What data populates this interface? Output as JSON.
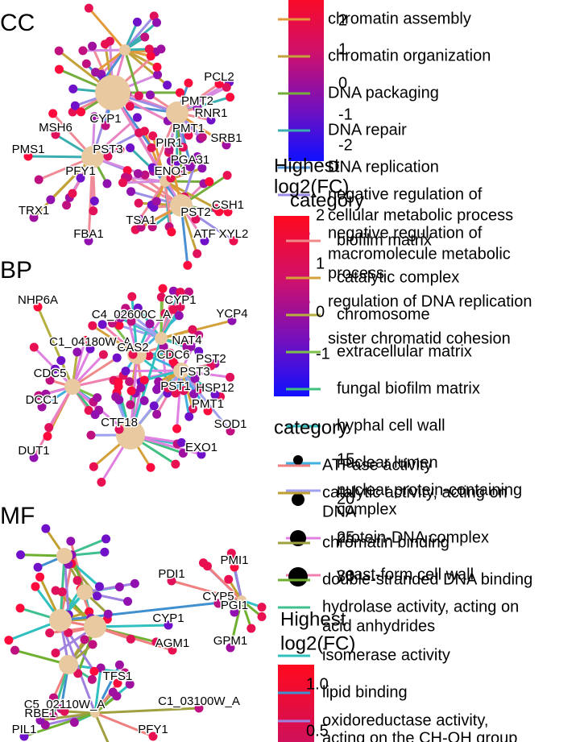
{
  "panels": [
    {
      "title": "CC",
      "genes": [
        "PCL2",
        "MSH6",
        "CYP1",
        "PMT2",
        "RNR1",
        "PMT1",
        "SRB1",
        "PMS1",
        "PST3",
        "PIR1",
        "PGA31",
        "PFY1",
        "ENO1",
        "TRX1",
        "CSH1",
        "PST2",
        "TSA1",
        "FBA1",
        "ATF",
        "XYL2"
      ]
    },
    {
      "title": "BP",
      "genes": [
        "NHP6A",
        "CYP1",
        "C4_02600C_A",
        "YCP4",
        "C1_04180W_A",
        "CAS2",
        "NAT4",
        "CDC6",
        "PST2",
        "CDC5",
        "PST3",
        "HSP12",
        "PST1",
        "DCC1",
        "PMT1",
        "CTF18",
        "SOD1",
        "DUT1",
        "EXO1"
      ]
    },
    {
      "title": "MF",
      "genes": [
        "PMI1",
        "PDI1",
        "CYP5",
        "PGI1",
        "CYP1",
        "AGM1",
        "GPM1",
        "TFS1",
        "C5_02110W_A",
        "C1_03100W_A",
        "RBE1",
        "PIL1",
        "PFY1"
      ]
    }
  ],
  "legends": [
    {
      "ticks": [
        "2",
        "1",
        "0",
        "-1",
        "-2"
      ],
      "categories": [
        {
          "lines": [
            "chromatin assembly"
          ],
          "color": "#e39a3b"
        },
        {
          "lines": [
            "chromatin organization"
          ],
          "color": "#c3a23a"
        },
        {
          "lines": [
            "DNA packaging"
          ],
          "color": "#74ad3c"
        },
        {
          "lines": [
            "DNA repair"
          ],
          "color": "#3aaeb0"
        },
        {
          "lines": [
            "DNA replication"
          ],
          "color": "#4d8fd3"
        },
        {
          "lines": [
            "negative regulation of",
            "cellular metabolic process"
          ],
          "color": "#9a8ee6"
        },
        {
          "lines": [
            "negative regulation of",
            "macromolecule metabolic",
            "process"
          ],
          "color": "#d68ae0"
        },
        {
          "lines": [
            "regulation of DNA replication"
          ],
          "color": "#ea84c0"
        },
        {
          "lines": [
            "sister chromatid cohesion"
          ],
          "color": "#f08a96"
        }
      ]
    },
    {
      "title": [
        "Highest",
        "log2(FC)"
      ],
      "ticks": [
        "2",
        "1",
        "0",
        "-1"
      ],
      "category_title": "category",
      "categories": [
        {
          "lines": [
            "biofilm matrix"
          ],
          "color": "#f08a8a"
        },
        {
          "lines": [
            "catalytic complex"
          ],
          "color": "#d4a03a"
        },
        {
          "lines": [
            "chromosome"
          ],
          "color": "#b5b040"
        },
        {
          "lines": [
            "extracellular matrix"
          ],
          "color": "#7cc04a"
        },
        {
          "lines": [
            "fungal biofilm matrix"
          ],
          "color": "#40c080"
        },
        {
          "lines": [
            "hyphal cell wall"
          ],
          "color": "#30c0c0"
        },
        {
          "lines": [
            "nuclear lumen"
          ],
          "color": "#40b0e0"
        },
        {
          "lines": [
            "nuclear protein-containing",
            "complex"
          ],
          "color": "#a0a0f0"
        },
        {
          "lines": [
            "protein-DNA complex"
          ],
          "color": "#e080e0"
        },
        {
          "lines": [
            "yeast-form cell wall"
          ],
          "color": "#f080b0"
        }
      ],
      "size_breaks": [
        15,
        20,
        25,
        30
      ]
    },
    {
      "title": [
        "Highest",
        "log2(FC)"
      ],
      "ticks": [
        "1.0",
        "0.5"
      ],
      "category_title": "category",
      "categories": [
        {
          "lines": [
            "ATPase activity"
          ],
          "color": "#f08080"
        },
        {
          "lines": [
            "catalytic activity, acting on",
            "DNA"
          ],
          "color": "#c0a030"
        },
        {
          "lines": [
            "chromatin binding"
          ],
          "color": "#a0a040"
        },
        {
          "lines": [
            "double-stranded DNA binding"
          ],
          "color": "#70b030"
        },
        {
          "lines": [
            "hydrolase activity, acting on",
            "acid anhydrides"
          ],
          "color": "#40c090"
        },
        {
          "lines": [
            "isomerase activity"
          ],
          "color": "#30c0c0"
        },
        {
          "lines": [
            "lipid binding"
          ],
          "color": "#4090d0"
        },
        {
          "lines": [
            "oxidoreductase activity,",
            "acting on the CH-OH group"
          ],
          "color": "#a080e0"
        }
      ]
    }
  ]
}
